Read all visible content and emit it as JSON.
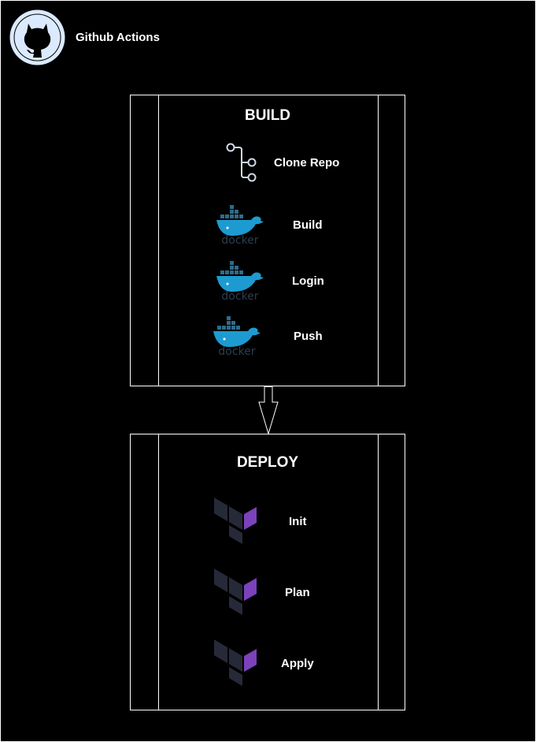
{
  "header": {
    "title": "Github Actions",
    "icon": "github-icon"
  },
  "colors": {
    "background": "#000000",
    "line": "#ffffff",
    "github": "#dbeafe",
    "docker_blue": "#1d9bd1",
    "docker_text": "#2c3e50",
    "terraform_purple": "#7b42bc",
    "terraform_dark": "#262a38"
  },
  "stages": [
    {
      "title": "BUILD",
      "steps": [
        {
          "label": "Clone Repo",
          "icon": "git-branch-icon"
        },
        {
          "label": "Build",
          "icon": "docker-icon",
          "icon_text": "docker"
        },
        {
          "label": "Login",
          "icon": "docker-icon",
          "icon_text": "docker"
        },
        {
          "label": "Push",
          "icon": "docker-icon",
          "icon_text": "docker"
        }
      ]
    },
    {
      "title": "DEPLOY",
      "steps": [
        {
          "label": "Init",
          "icon": "terraform-icon"
        },
        {
          "label": "Plan",
          "icon": "terraform-icon"
        },
        {
          "label": "Apply",
          "icon": "terraform-icon"
        }
      ]
    }
  ],
  "connector": {
    "icon": "arrow-down-icon"
  }
}
